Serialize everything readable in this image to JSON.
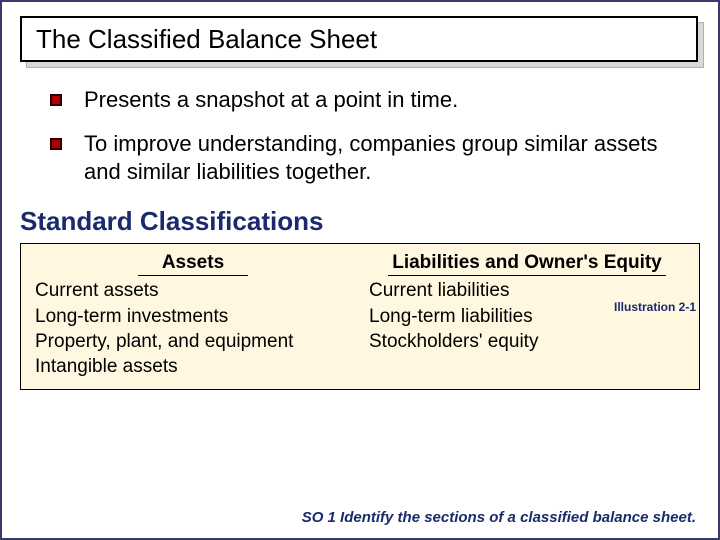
{
  "colors": {
    "slide_border": "#3a3a6c",
    "title_border": "#000000",
    "title_shadow": "#d9d9d9",
    "bullet_fill": "#b00000",
    "bullet_border": "#2a0000",
    "accent_text": "#1a2a6c",
    "table_bg": "#fff7e0",
    "body_text": "#000000"
  },
  "typography": {
    "title_family": "Arial",
    "body_family": "Comic Sans MS",
    "title_size_pt": 20,
    "body_size_pt": 16,
    "subheading_size_pt": 19,
    "caption_size_pt": 9,
    "footer_size_pt": 11
  },
  "title": "The Classified Balance Sheet",
  "bullets": [
    "Presents a snapshot at a point in time.",
    "To improve understanding, companies group similar assets and similar liabilities together."
  ],
  "subheading": "Standard Classifications",
  "illustration_label": "Illustration 2-1",
  "table": {
    "columns": [
      {
        "header": "Assets",
        "items": [
          "Current assets",
          "Long-term investments",
          "Property, plant, and equipment",
          "Intangible assets"
        ]
      },
      {
        "header": "Liabilities and Owner's Equity",
        "items": [
          "Current liabilities",
          "Long-term liabilities",
          "Stockholders' equity"
        ]
      }
    ]
  },
  "footer": "SO 1   Identify the sections of a classified balance sheet."
}
